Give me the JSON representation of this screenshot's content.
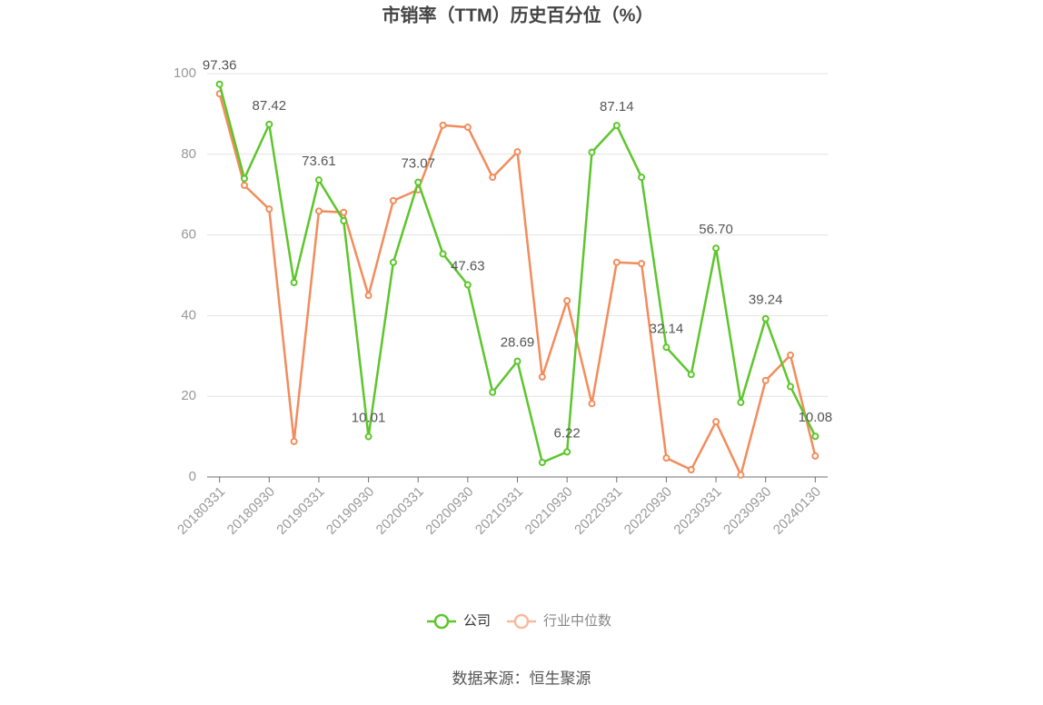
{
  "chart_data": {
    "type": "line",
    "title": "市销率（TTM）历史百分位（%）",
    "source": "数据来源：恒生聚源",
    "categories": [
      "20180331",
      null,
      "20180930",
      null,
      "20190331",
      null,
      "20190930",
      null,
      "20200331",
      null,
      "20200930",
      null,
      "20210331",
      null,
      "20210930",
      null,
      "20220331",
      null,
      "20220930",
      null,
      "20230331",
      null,
      "20230930",
      null,
      "20240130"
    ],
    "series": [
      {
        "name": "公司",
        "color": "#5cc62c",
        "values": [
          97.36,
          74.0,
          87.42,
          48.2,
          73.61,
          63.5,
          10.01,
          53.2,
          73.07,
          55.3,
          47.63,
          21.0,
          28.69,
          3.6,
          6.22,
          80.5,
          87.14,
          74.3,
          32.14,
          25.4,
          56.7,
          18.5,
          39.24,
          22.4,
          10.08
        ],
        "value_labels": [
          "97.36",
          null,
          "87.42",
          null,
          "73.61",
          null,
          "10.01",
          null,
          "73.07",
          null,
          "47.63",
          null,
          "28.69",
          null,
          "6.22",
          null,
          "87.14",
          null,
          "32.14",
          null,
          "56.70",
          null,
          "39.24",
          null,
          "10.08"
        ]
      },
      {
        "name": "行业中位数",
        "color": "#f28c5c",
        "values": [
          95.0,
          72.3,
          66.4,
          8.8,
          65.9,
          65.6,
          45.0,
          68.5,
          71.2,
          87.2,
          86.7,
          74.3,
          80.6,
          24.8,
          43.7,
          18.2,
          53.2,
          52.9,
          4.7,
          1.8,
          13.7,
          0.5,
          23.9,
          30.2,
          5.2
        ]
      }
    ],
    "ylim": [
      0,
      100
    ],
    "yticks": [
      0,
      20,
      40,
      60,
      80,
      100
    ],
    "grid": true,
    "legend": "bottom"
  }
}
